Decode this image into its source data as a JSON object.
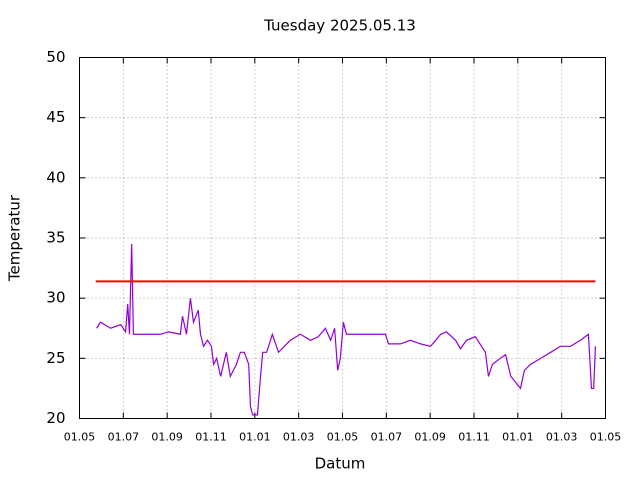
{
  "chart_data": {
    "type": "line",
    "title": "Tuesday 2025.05.13",
    "xlabel": "Datum",
    "ylabel": "Temperatur",
    "xlim": [
      0,
      12
    ],
    "xticks": [
      {
        "value": 0,
        "label": "01.05"
      },
      {
        "value": 1,
        "label": "01.07"
      },
      {
        "value": 2,
        "label": "01.09"
      },
      {
        "value": 3,
        "label": "01.11"
      },
      {
        "value": 4,
        "label": "01.01"
      },
      {
        "value": 5,
        "label": "01.03"
      },
      {
        "value": 6,
        "label": "01.05"
      },
      {
        "value": 7,
        "label": "01.07"
      },
      {
        "value": 8,
        "label": "01.09"
      },
      {
        "value": 9,
        "label": "01.11"
      },
      {
        "value": 10,
        "label": "01.01"
      },
      {
        "value": 11,
        "label": "01.03"
      },
      {
        "value": 12,
        "label": "01.05"
      }
    ],
    "ylim": [
      20,
      50
    ],
    "yticks": [
      20,
      25,
      30,
      35,
      40,
      45,
      50
    ],
    "grid": true,
    "series": [
      {
        "color": "#9400d3",
        "x": [
          0.39,
          0.48,
          0.71,
          0.94,
          1.05,
          1.1,
          1.14,
          1.19,
          1.23,
          1.85,
          2.03,
          2.3,
          2.35,
          2.44,
          2.53,
          2.6,
          2.71,
          2.76,
          2.83,
          2.92,
          3.01,
          3.06,
          3.13,
          3.22,
          3.35,
          3.44,
          3.58,
          3.67,
          3.76,
          3.86,
          3.9,
          3.95,
          4.06,
          4.13,
          4.18,
          4.27,
          4.4,
          4.54,
          4.81,
          5.04,
          5.27,
          5.45,
          5.61,
          5.73,
          5.82,
          5.89,
          5.95,
          6.02,
          6.09,
          6.41,
          6.98,
          7.05,
          7.32,
          7.55,
          7.78,
          8.01,
          8.24,
          8.37,
          8.58,
          8.69,
          8.83,
          9.03,
          9.26,
          9.33,
          9.42,
          9.6,
          9.72,
          9.84,
          9.95,
          10.06,
          10.15,
          10.29,
          10.52,
          10.75,
          10.97,
          11.2,
          11.43,
          11.61,
          11.68,
          11.73,
          11.77
        ],
        "values": [
          27.5,
          28,
          27.5,
          27.8,
          27.2,
          29.5,
          27,
          34.5,
          27,
          27,
          27.2,
          27,
          28.5,
          27,
          30,
          28,
          29,
          27,
          26,
          26.5,
          26,
          24.5,
          25,
          23.5,
          25.5,
          23.5,
          24.5,
          25.5,
          25.5,
          24.5,
          21,
          20.3,
          20.3,
          23.5,
          25.5,
          25.5,
          27,
          25.5,
          26.5,
          27,
          26.5,
          26.8,
          27.5,
          26.5,
          27.5,
          24,
          25,
          28,
          27,
          27,
          27,
          26.2,
          26.2,
          26.5,
          26.2,
          26,
          27,
          27.2,
          26.5,
          25.8,
          26.5,
          26.8,
          25.5,
          23.5,
          24.5,
          25,
          25.3,
          23.5,
          23,
          22.5,
          24,
          24.5,
          25,
          25.5,
          26,
          26,
          26.5,
          27,
          22.5,
          22.5,
          26
        ]
      },
      {
        "color": "#ff0000",
        "x": [
          0.37,
          11.77
        ],
        "values": [
          31.4,
          31.4
        ]
      }
    ]
  }
}
